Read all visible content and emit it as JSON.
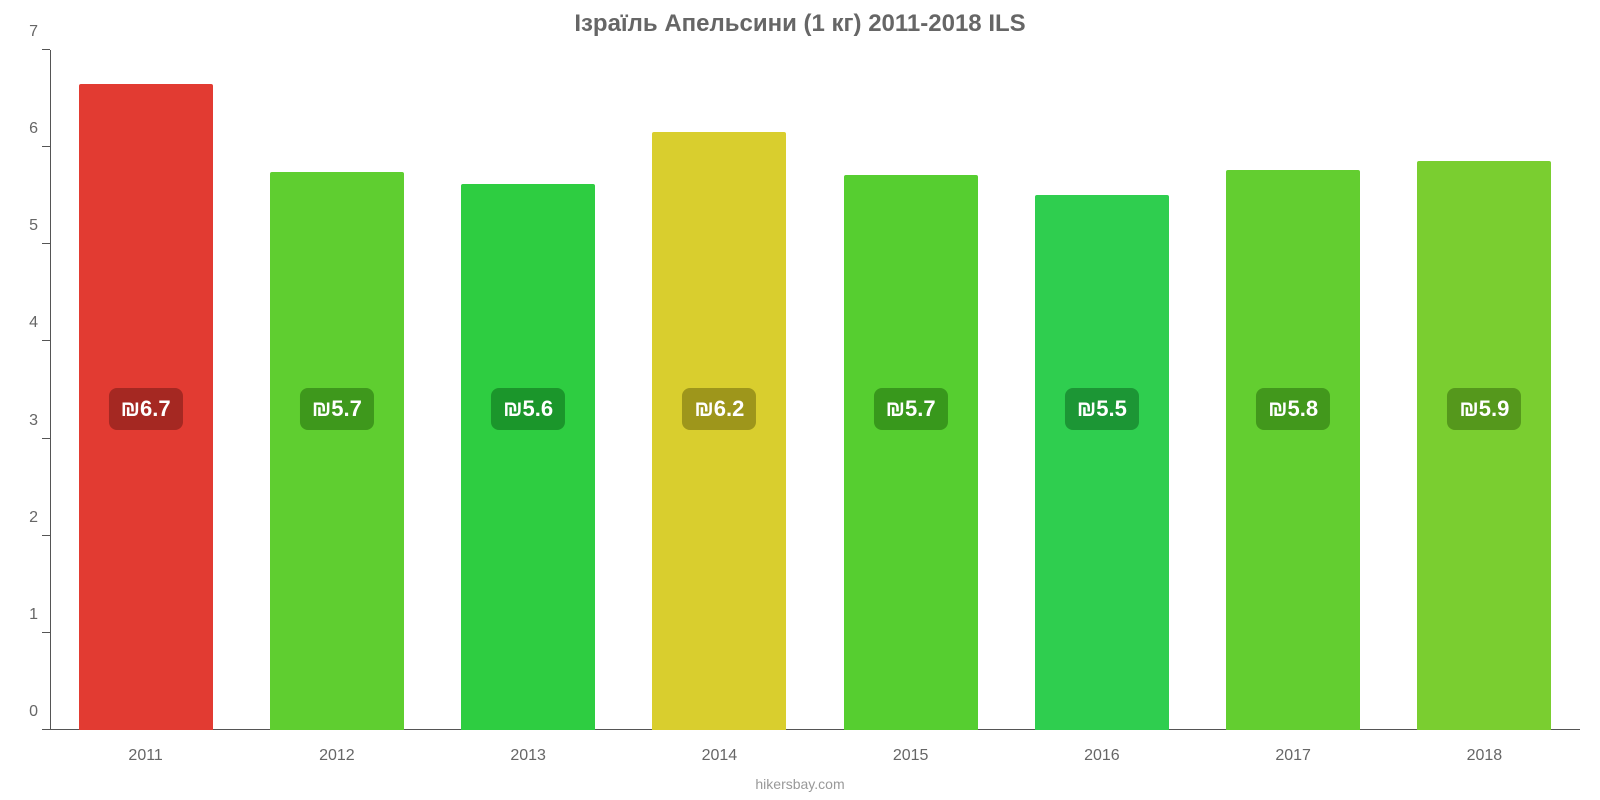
{
  "chart": {
    "type": "bar",
    "title": "Ізраїль Апельсини (1 кг) 2011-2018 ILS",
    "title_color": "#666666",
    "title_fontsize": 24,
    "background_color": "#ffffff",
    "attribution": "hikersbay.com",
    "attribution_color": "#999999",
    "axis_color": "#555555",
    "label_color": "#666666",
    "y": {
      "min": 0,
      "max": 7,
      "ticks": [
        0,
        1,
        2,
        3,
        4,
        5,
        6,
        7
      ],
      "tick_fontsize": 16
    },
    "x": {
      "categories": [
        "2011",
        "2012",
        "2013",
        "2014",
        "2015",
        "2016",
        "2017",
        "2018"
      ],
      "tick_fontsize": 16
    },
    "bars": [
      {
        "value": 6.65,
        "label": "₪6.7",
        "bar_color": "#e23b32",
        "label_bg": "#a52822",
        "label_text_color": "#ffffff"
      },
      {
        "value": 5.74,
        "label": "₪5.7",
        "bar_color": "#5fce30",
        "label_bg": "#3e981c",
        "label_text_color": "#ffffff"
      },
      {
        "value": 5.62,
        "label": "₪5.6",
        "bar_color": "#2ecd41",
        "label_bg": "#1b962b",
        "label_text_color": "#ffffff"
      },
      {
        "value": 6.16,
        "label": "₪6.2",
        "bar_color": "#d9ce2e",
        "label_bg": "#9e961b",
        "label_text_color": "#ffffff"
      },
      {
        "value": 5.71,
        "label": "₪5.7",
        "bar_color": "#56ce30",
        "label_bg": "#38981c",
        "label_text_color": "#ffffff"
      },
      {
        "value": 5.51,
        "label": "₪5.5",
        "bar_color": "#2fce4f",
        "label_bg": "#1c9635",
        "label_text_color": "#ffffff"
      },
      {
        "value": 5.77,
        "label": "₪5.8",
        "bar_color": "#63ce30",
        "label_bg": "#42981c",
        "label_text_color": "#ffffff"
      },
      {
        "value": 5.86,
        "label": "₪5.9",
        "bar_color": "#7ace30",
        "label_bg": "#55981c",
        "label_text_color": "#ffffff"
      }
    ],
    "bar_width_pct": 70,
    "bar_label_fontsize": 22,
    "bar_label_radius": 8,
    "bar_label_center_y_value": 3.3
  }
}
